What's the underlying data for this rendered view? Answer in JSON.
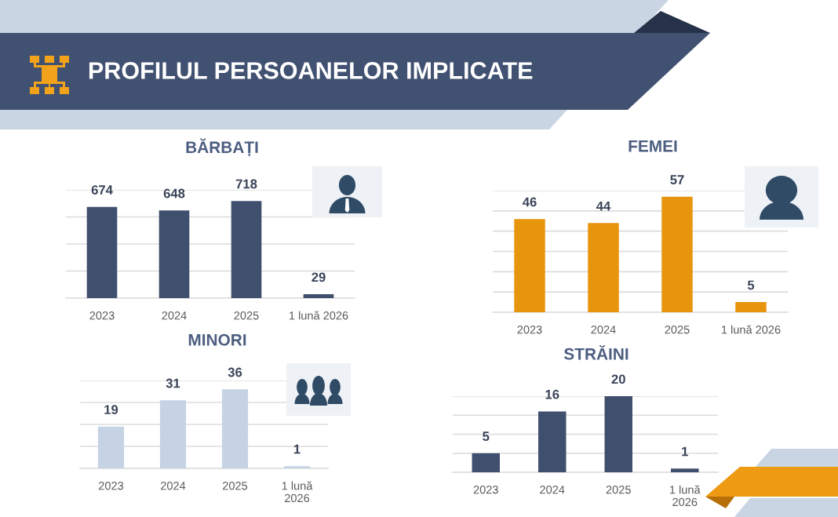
{
  "chart_data": [
    {
      "type": "other",
      "title": "PROFILUL PERSOANELOR IMPLICATE"
    },
    {
      "type": "bar",
      "title": "BĂRBAȚI",
      "categories": [
        "2023",
        "2024",
        "2025",
        "1 lună 2026"
      ],
      "values": [
        674,
        648,
        718,
        29
      ],
      "color": "#3f4f6e",
      "ylim": [
        0,
        800
      ],
      "yticks": [
        {
          "value": 0,
          "label": null
        },
        {
          "value": 200,
          "label": null
        },
        {
          "value": 400,
          "label": null
        },
        {
          "value": 600,
          "label": null
        },
        {
          "value": 800,
          "label": null
        }
      ],
      "grid": "y",
      "tick_labels": "x",
      "data_labels": true
    },
    {
      "type": "bar",
      "title": "FEMEI",
      "categories": [
        "2023",
        "2024",
        "2025",
        "1 lună 2026"
      ],
      "values": [
        46,
        44,
        57,
        5
      ],
      "color": "#e8950e",
      "ylim": [
        0,
        60
      ],
      "yticks": [
        {
          "value": 0,
          "label": null
        },
        {
          "value": 10,
          "label": null
        },
        {
          "value": 20,
          "label": null
        },
        {
          "value": 30,
          "label": null
        },
        {
          "value": 40,
          "label": null
        },
        {
          "value": 50,
          "label": null
        },
        {
          "value": 60,
          "label": null
        }
      ],
      "grid": "y",
      "tick_labels": "x",
      "data_labels": true
    },
    {
      "type": "bar",
      "title": "MINORI",
      "categories": [
        "2023",
        "2024",
        "2025",
        "1 lună\n2026"
      ],
      "values": [
        19,
        31,
        36,
        1
      ],
      "color": "#c5d3e4",
      "ylim": [
        0,
        40
      ],
      "yticks": [
        {
          "value": 0,
          "label": null
        },
        {
          "value": 10,
          "label": null
        },
        {
          "value": 20,
          "label": null
        },
        {
          "value": 30,
          "label": null
        },
        {
          "value": 40,
          "label": null
        }
      ],
      "grid": "y",
      "tick_labels": "x",
      "data_labels": true
    },
    {
      "type": "bar",
      "title": "STRĂINI",
      "categories": [
        "2023",
        "2024",
        "2025",
        "1 lună\n2026"
      ],
      "values": [
        5,
        16,
        20,
        1
      ],
      "color": "#3f4f6e",
      "ylim": [
        0,
        20
      ],
      "yticks": [
        {
          "value": 0,
          "label": null
        },
        {
          "value": 5,
          "label": null
        },
        {
          "value": 10,
          "label": null
        },
        {
          "value": 15,
          "label": null
        },
        {
          "value": 20,
          "label": null
        }
      ],
      "grid": "y",
      "tick_labels": "x",
      "data_labels": true
    }
  ]
}
